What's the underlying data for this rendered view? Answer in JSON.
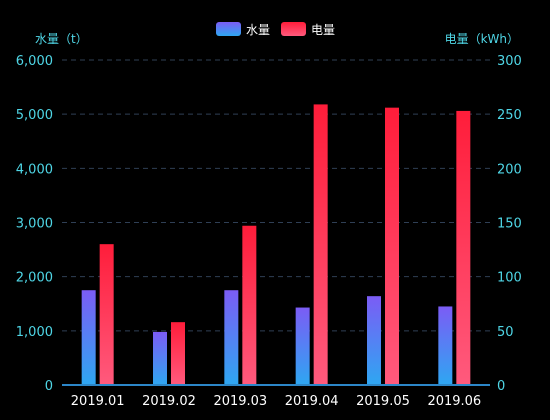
{
  "legend": {
    "water_label": "水量",
    "power_label": "电量"
  },
  "axis": {
    "left_title": "水量（t）",
    "right_title": "电量（kWh）"
  },
  "colors": {
    "background": "#000000",
    "axis_text": "#4fd6e6",
    "category_text": "#ffffff",
    "grid": "#2f3f55",
    "axis_line": "#2c86c8",
    "water_top": "#7b5cf5",
    "water_bottom": "#2ea7f2",
    "power_top": "#ff1d3a",
    "power_bottom": "#ff5a7d"
  },
  "chart_data": {
    "type": "bar",
    "categories": [
      "2019.01",
      "2019.02",
      "2019.03",
      "2019.04",
      "2019.05",
      "2019.06"
    ],
    "series": [
      {
        "name": "水量",
        "axis": "left",
        "values": [
          1750,
          980,
          1750,
          1430,
          1640,
          1450
        ]
      },
      {
        "name": "电量",
        "axis": "right",
        "values": [
          130,
          58,
          147,
          259,
          256,
          253
        ]
      }
    ],
    "y_left": {
      "ticks": [
        "0",
        "1,000",
        "2,000",
        "3,000",
        "4,000",
        "5,000",
        "6,000"
      ],
      "min": 0,
      "max": 6000
    },
    "y_right": {
      "ticks": [
        "0",
        "50",
        "100",
        "150",
        "200",
        "250",
        "300"
      ],
      "min": 0,
      "max": 300
    },
    "grid": true,
    "legend_position": "top-center"
  }
}
